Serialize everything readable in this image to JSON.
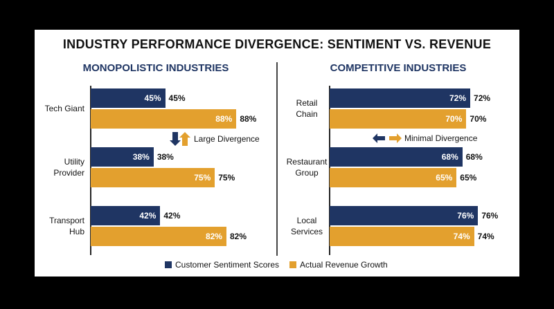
{
  "title": "INDUSTRY PERFORMANCE DIVERGENCE: SENTIMENT VS. REVENUE",
  "legend": {
    "sentiment": "Customer Sentiment Scores",
    "revenue": "Actual Revenue Growth"
  },
  "colors": {
    "sentiment": "#1f3563",
    "revenue": "#e3a02e"
  },
  "chart_data": [
    {
      "type": "bar",
      "orientation": "horizontal",
      "title": "MONOPOLISTIC INDUSTRIES",
      "categories": [
        "Tech Giant",
        "Utility Provider",
        "Transport Hub"
      ],
      "series": [
        {
          "name": "Customer Sentiment Scores",
          "values": [
            45,
            38,
            42
          ],
          "labels": [
            "45%",
            "38%",
            "42%"
          ]
        },
        {
          "name": "Actual Revenue Growth",
          "values": [
            88,
            75,
            82
          ],
          "labels": [
            "88%",
            "75%",
            "82%"
          ]
        }
      ],
      "annotation": "Large Divergence",
      "xlim": [
        0,
        100
      ]
    },
    {
      "type": "bar",
      "orientation": "horizontal",
      "title": "COMPETITIVE INDUSTRIES",
      "categories": [
        "Retail Chain",
        "Restaurant Group",
        "Local Services"
      ],
      "series": [
        {
          "name": "Customer Sentiment Scores",
          "values": [
            72,
            68,
            76
          ],
          "labels": [
            "72%",
            "68%",
            "76%"
          ]
        },
        {
          "name": "Actual Revenue Growth",
          "values": [
            70,
            65,
            74
          ],
          "labels": [
            "70%",
            "65%",
            "74%"
          ]
        }
      ],
      "annotation": "Minimal Divergence",
      "xlim": [
        0,
        100
      ]
    }
  ]
}
